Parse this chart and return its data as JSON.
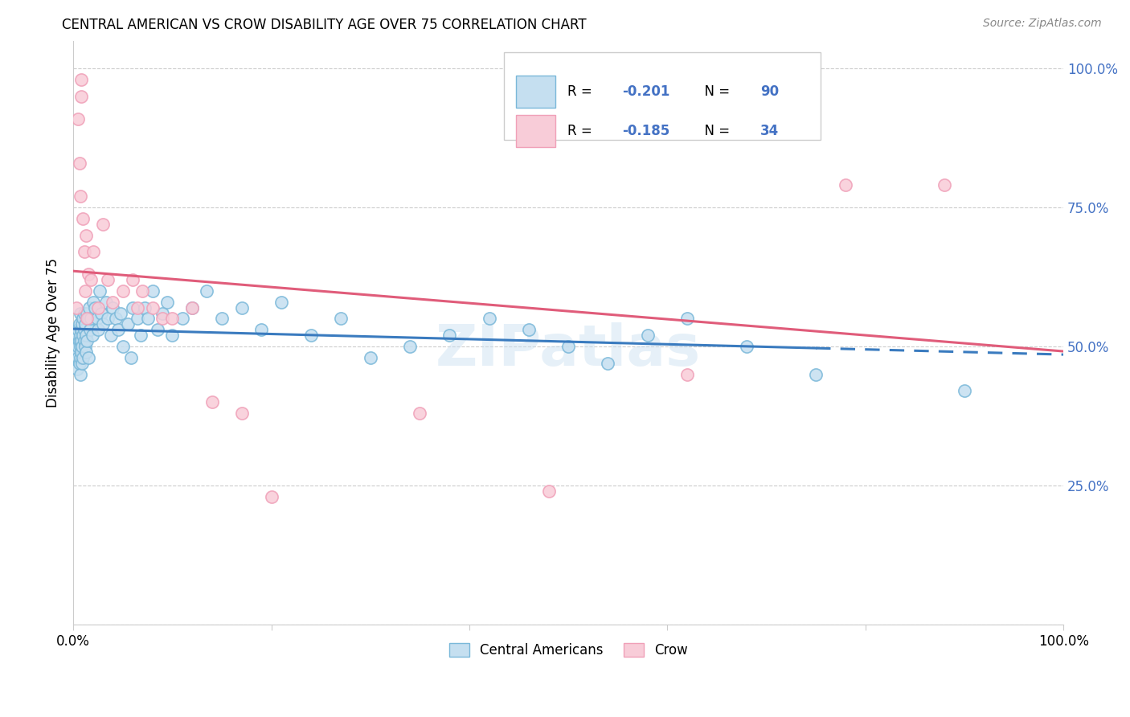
{
  "title": "CENTRAL AMERICAN VS CROW DISABILITY AGE OVER 75 CORRELATION CHART",
  "source": "Source: ZipAtlas.com",
  "ylabel": "Disability Age Over 75",
  "xlim": [
    0.0,
    1.0
  ],
  "ylim": [
    0.0,
    1.05
  ],
  "ytick_vals": [
    0.0,
    0.25,
    0.5,
    0.75,
    1.0
  ],
  "ytick_labels": [
    "",
    "25.0%",
    "50.0%",
    "75.0%",
    "100.0%"
  ],
  "blue_color": "#7ab8d9",
  "blue_fill": "#c5dff0",
  "pink_color": "#f0a0b8",
  "pink_fill": "#f8ccd8",
  "trend_blue": "#3a7bbf",
  "trend_pink": "#e05c7a",
  "r_blue": "-0.201",
  "n_blue": "90",
  "r_pink": "-0.185",
  "n_pink": "34",
  "watermark": "ZIPatlas",
  "blue_scatter_x": [
    0.002,
    0.003,
    0.003,
    0.004,
    0.004,
    0.004,
    0.005,
    0.005,
    0.005,
    0.005,
    0.006,
    0.006,
    0.006,
    0.007,
    0.007,
    0.007,
    0.007,
    0.007,
    0.008,
    0.008,
    0.008,
    0.009,
    0.009,
    0.009,
    0.01,
    0.01,
    0.01,
    0.011,
    0.011,
    0.011,
    0.012,
    0.012,
    0.013,
    0.013,
    0.014,
    0.014,
    0.015,
    0.015,
    0.016,
    0.017,
    0.018,
    0.019,
    0.02,
    0.022,
    0.024,
    0.025,
    0.027,
    0.028,
    0.03,
    0.033,
    0.035,
    0.038,
    0.04,
    0.043,
    0.045,
    0.048,
    0.05,
    0.055,
    0.058,
    0.06,
    0.065,
    0.068,
    0.072,
    0.075,
    0.08,
    0.085,
    0.09,
    0.095,
    0.1,
    0.11,
    0.12,
    0.135,
    0.15,
    0.17,
    0.19,
    0.21,
    0.24,
    0.27,
    0.3,
    0.34,
    0.38,
    0.42,
    0.46,
    0.5,
    0.54,
    0.58,
    0.62,
    0.68,
    0.75,
    0.9
  ],
  "blue_scatter_y": [
    0.5,
    0.48,
    0.52,
    0.49,
    0.51,
    0.46,
    0.5,
    0.52,
    0.48,
    0.53,
    0.47,
    0.51,
    0.54,
    0.5,
    0.48,
    0.52,
    0.45,
    0.56,
    0.49,
    0.53,
    0.51,
    0.5,
    0.54,
    0.47,
    0.52,
    0.55,
    0.48,
    0.51,
    0.53,
    0.56,
    0.5,
    0.54,
    0.52,
    0.49,
    0.56,
    0.51,
    0.55,
    0.48,
    0.57,
    0.53,
    0.55,
    0.52,
    0.58,
    0.57,
    0.55,
    0.53,
    0.6,
    0.56,
    0.54,
    0.58,
    0.55,
    0.52,
    0.57,
    0.55,
    0.53,
    0.56,
    0.5,
    0.54,
    0.48,
    0.57,
    0.55,
    0.52,
    0.57,
    0.55,
    0.6,
    0.53,
    0.56,
    0.58,
    0.52,
    0.55,
    0.57,
    0.6,
    0.55,
    0.57,
    0.53,
    0.58,
    0.52,
    0.55,
    0.48,
    0.5,
    0.52,
    0.55,
    0.53,
    0.5,
    0.47,
    0.52,
    0.55,
    0.5,
    0.45,
    0.42
  ],
  "pink_scatter_x": [
    0.003,
    0.005,
    0.006,
    0.007,
    0.008,
    0.008,
    0.01,
    0.011,
    0.012,
    0.013,
    0.014,
    0.015,
    0.018,
    0.02,
    0.025,
    0.03,
    0.035,
    0.04,
    0.05,
    0.06,
    0.065,
    0.07,
    0.08,
    0.09,
    0.1,
    0.12,
    0.14,
    0.17,
    0.2,
    0.35,
    0.48,
    0.62,
    0.78,
    0.88
  ],
  "pink_scatter_y": [
    0.57,
    0.91,
    0.83,
    0.77,
    0.98,
    0.95,
    0.73,
    0.67,
    0.6,
    0.7,
    0.55,
    0.63,
    0.62,
    0.67,
    0.57,
    0.72,
    0.62,
    0.58,
    0.6,
    0.62,
    0.57,
    0.6,
    0.57,
    0.55,
    0.55,
    0.57,
    0.4,
    0.38,
    0.23,
    0.38,
    0.24,
    0.45,
    0.79,
    0.79
  ]
}
